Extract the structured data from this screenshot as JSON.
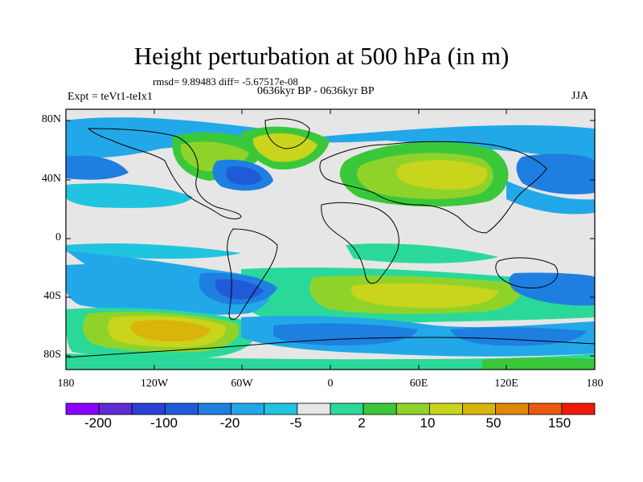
{
  "header": {
    "title": "Height perturbation at 500 hPa (in m)",
    "stats": "rmsd= 9.89483 diff= -5.67517e-08",
    "period": "0636kyr BP - 0636kyr BP",
    "expt": "Expt = teVt1-teIx1",
    "season": "JJA"
  },
  "axes": {
    "y_ticks": [
      "80N",
      "40N",
      "0",
      "40S",
      "80S"
    ],
    "x_ticks": [
      "180",
      "120W",
      "60W",
      "0",
      "60E",
      "120E",
      "180"
    ]
  },
  "colorbar": {
    "colors": [
      "#8a00ff",
      "#5e2bd4",
      "#2a3fd6",
      "#1f5bd8",
      "#1e7fe0",
      "#22a8e8",
      "#20c4df",
      "#e6e6e6",
      "#2ad99a",
      "#3ac83a",
      "#8fd32a",
      "#c9d41c",
      "#d9b40a",
      "#e0870a",
      "#e75a10",
      "#f01808"
    ],
    "labels": [
      "-200",
      "-100",
      "-20",
      "-5",
      "2",
      "10",
      "50",
      "150"
    ]
  },
  "map": {
    "background": "#e6e6e6"
  }
}
